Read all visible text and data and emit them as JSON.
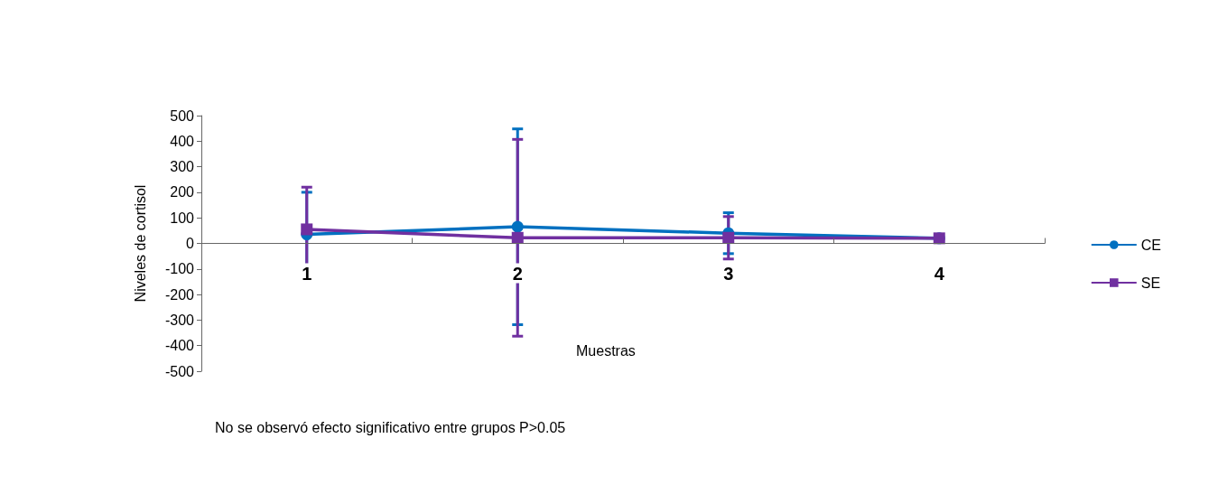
{
  "chart_data": {
    "type": "line",
    "categories": [
      "1",
      "2",
      "3",
      "4"
    ],
    "xlabel": "Muestras",
    "ylabel": "Niveles de cortisol",
    "ylim": [
      -500,
      500
    ],
    "yticks": [
      -500,
      -400,
      -300,
      -200,
      -100,
      0,
      100,
      200,
      300,
      400,
      500
    ],
    "grid": false,
    "legend": "right",
    "series": [
      {
        "name": "CE",
        "color": "#0070c0",
        "marker": "circle",
        "values": [
          35,
          65,
          40,
          20
        ],
        "errors": [
          165,
          383,
          80,
          null
        ]
      },
      {
        "name": "SE",
        "color": "#7030a0",
        "marker": "square",
        "values": [
          55,
          22,
          22,
          20
        ],
        "errors": [
          165,
          385,
          83,
          null
        ]
      }
    ],
    "annotations": [
      "No se observó efecto significativo entre grupos P>0.05"
    ]
  }
}
